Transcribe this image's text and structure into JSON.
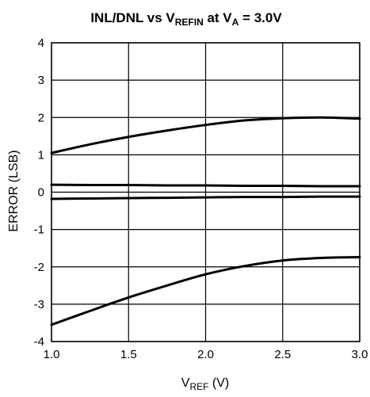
{
  "chart_data": {
    "type": "line",
    "title": {
      "parts": [
        {
          "text": "INL/DNL vs V",
          "sub": false
        },
        {
          "text": "REFIN",
          "sub": true
        },
        {
          "text": " at V",
          "sub": false
        },
        {
          "text": "A",
          "sub": true
        },
        {
          "text": " = 3.0V",
          "sub": false
        }
      ]
    },
    "xlabel": {
      "parts": [
        {
          "text": "V",
          "sub": false
        },
        {
          "text": "REF",
          "sub": true
        },
        {
          "text": " (V)",
          "sub": false
        }
      ]
    },
    "ylabel": "ERROR (LSB)",
    "xlim": [
      1.0,
      3.0
    ],
    "ylim": [
      -4,
      4
    ],
    "x_ticks": [
      1.0,
      1.5,
      2.0,
      2.5,
      3.0
    ],
    "x_tick_labels": [
      "1.0",
      "1.5",
      "2.0",
      "2.5",
      "3.0"
    ],
    "y_ticks": [
      -4,
      -3,
      -2,
      -1,
      0,
      1,
      2,
      3,
      4
    ],
    "y_tick_labels": [
      "-4",
      "-3",
      "-2",
      "-1",
      "0",
      "1",
      "2",
      "3",
      "4"
    ],
    "grid": true,
    "x": [
      1.0,
      1.25,
      1.5,
      1.75,
      2.0,
      2.25,
      2.5,
      2.75,
      3.0
    ],
    "series": [
      {
        "values": [
          1.05,
          1.28,
          1.48,
          1.65,
          1.8,
          1.92,
          1.98,
          2.0,
          1.97
        ]
      },
      {
        "values": [
          0.2,
          0.19,
          0.19,
          0.18,
          0.18,
          0.17,
          0.17,
          0.16,
          0.16
        ]
      },
      {
        "values": [
          -0.18,
          -0.17,
          -0.16,
          -0.15,
          -0.14,
          -0.13,
          -0.13,
          -0.12,
          -0.12
        ]
      },
      {
        "values": [
          -3.55,
          -3.18,
          -2.82,
          -2.5,
          -2.2,
          -1.98,
          -1.83,
          -1.76,
          -1.74
        ]
      }
    ]
  }
}
